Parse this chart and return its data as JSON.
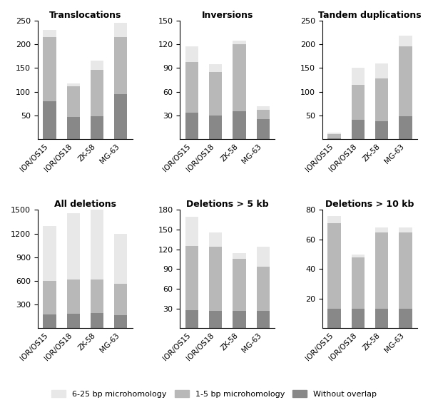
{
  "categories": [
    "IOR/OS15",
    "IOR/OS18",
    "ZK-58",
    "MG-63"
  ],
  "panels": [
    {
      "title": "Translocations",
      "ylim": [
        0,
        250
      ],
      "yticks": [
        50,
        100,
        150,
        200,
        250
      ],
      "without_overlap": [
        80,
        47,
        48,
        95
      ],
      "micro_1_5": [
        135,
        65,
        98,
        120
      ],
      "micro_6_25": [
        15,
        5,
        20,
        30
      ]
    },
    {
      "title": "Inversions",
      "ylim": [
        0,
        150
      ],
      "yticks": [
        30,
        60,
        90,
        120,
        150
      ],
      "without_overlap": [
        33,
        30,
        35,
        25
      ],
      "micro_1_5": [
        65,
        55,
        85,
        12
      ],
      "micro_6_25": [
        20,
        10,
        5,
        5
      ]
    },
    {
      "title": "Tandem duplications",
      "ylim": [
        0,
        250
      ],
      "yticks": [
        50,
        100,
        150,
        200,
        250
      ],
      "without_overlap": [
        2,
        40,
        38,
        48
      ],
      "micro_1_5": [
        8,
        75,
        90,
        148
      ],
      "micro_6_25": [
        3,
        35,
        32,
        22
      ]
    },
    {
      "title": "All deletions",
      "ylim": [
        0,
        1500
      ],
      "yticks": [
        300,
        600,
        900,
        1200,
        1500
      ],
      "without_overlap": [
        170,
        185,
        195,
        165
      ],
      "micro_1_5": [
        430,
        430,
        420,
        395
      ],
      "micro_6_25": [
        700,
        840,
        885,
        640
      ]
    },
    {
      "title": "Deletions > 5 kb",
      "ylim": [
        0,
        180
      ],
      "yticks": [
        30,
        60,
        90,
        120,
        150,
        180
      ],
      "without_overlap": [
        27,
        26,
        26,
        26
      ],
      "micro_1_5": [
        98,
        98,
        80,
        68
      ],
      "micro_6_25": [
        45,
        22,
        8,
        30
      ]
    },
    {
      "title": "Deletions > 10 kb",
      "ylim": [
        0,
        80
      ],
      "yticks": [
        20,
        40,
        60,
        80
      ],
      "without_overlap": [
        13,
        13,
        13,
        13
      ],
      "micro_1_5": [
        58,
        35,
        52,
        52
      ],
      "micro_6_25": [
        5,
        2,
        3,
        3
      ]
    }
  ],
  "colors": {
    "without_overlap": "#888888",
    "micro_1_5": "#b8b8b8",
    "micro_6_25": "#e8e8e8"
  },
  "legend": {
    "6_25": "6-25 bp microhomology",
    "1_5": "1-5 bp microhomology",
    "without": "Without overlap"
  }
}
